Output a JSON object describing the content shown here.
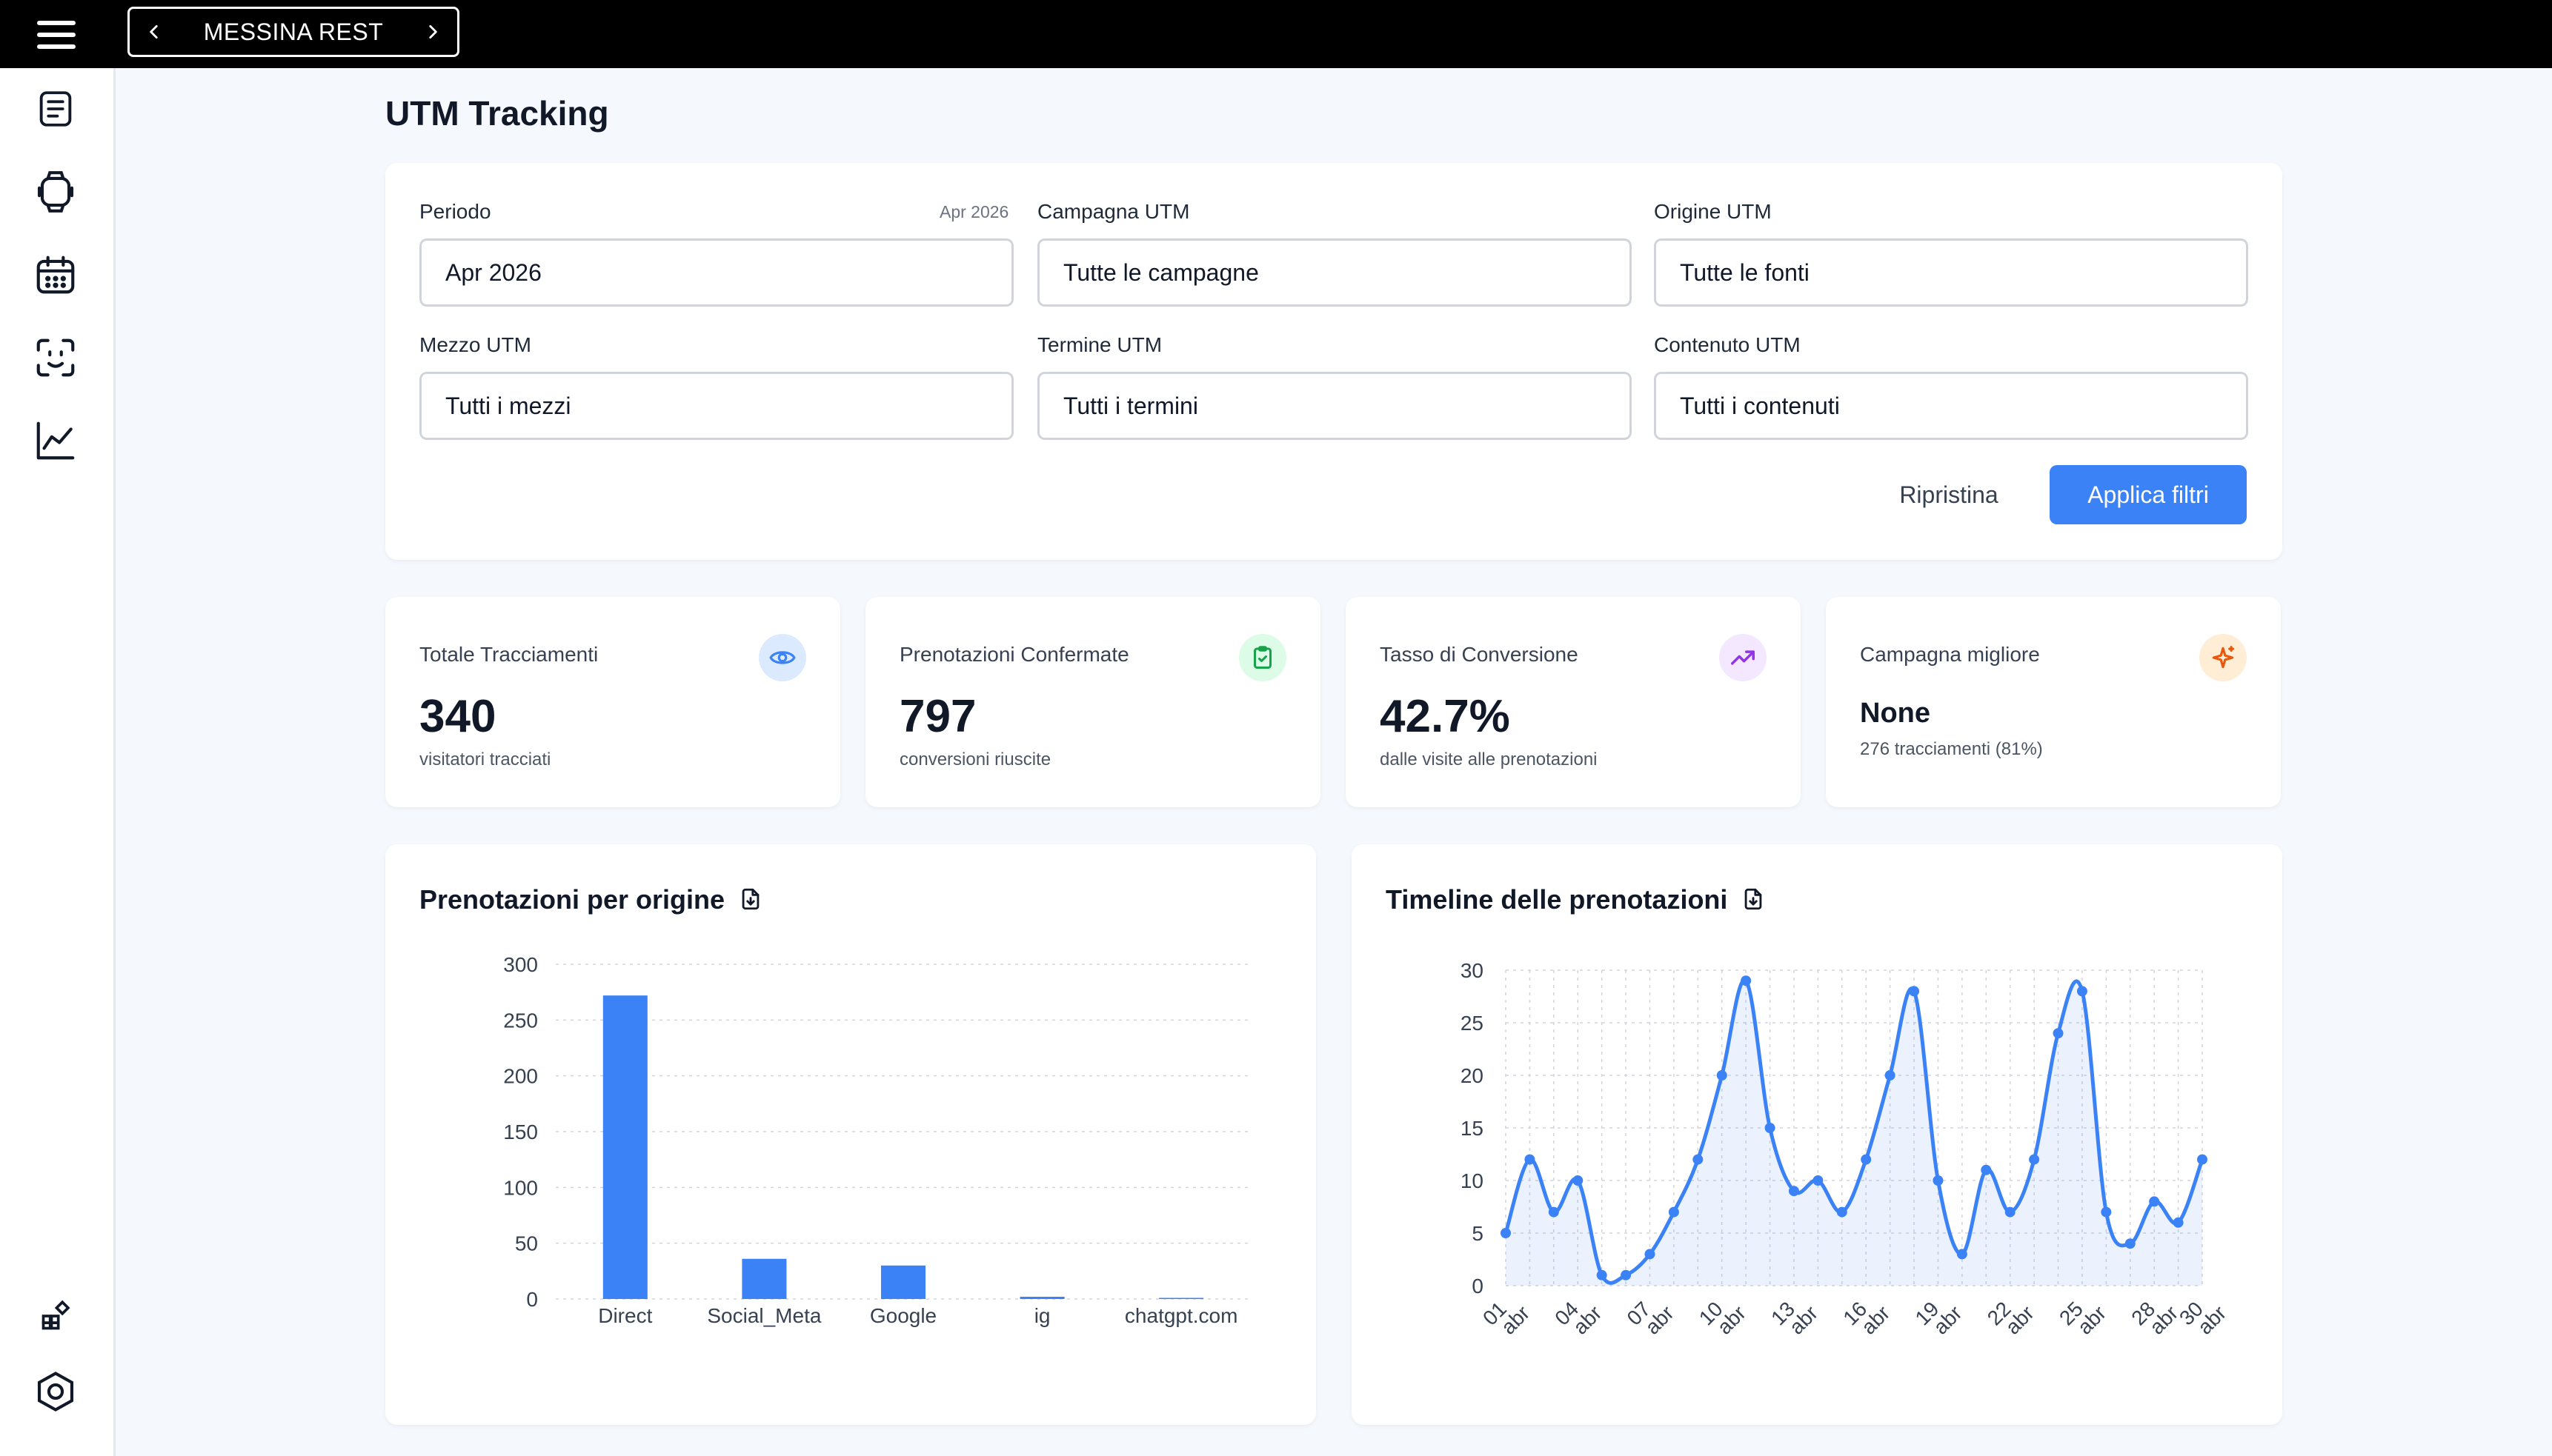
{
  "topbar": {
    "venue_name": "MESSINA REST"
  },
  "sidebar": {
    "items": [
      {
        "icon": "document-list-icon"
      },
      {
        "icon": "watch-icon"
      },
      {
        "icon": "calendar-icon"
      },
      {
        "icon": "face-scan-icon"
      },
      {
        "icon": "line-chart-icon"
      }
    ],
    "bottom_items": [
      {
        "icon": "widgets-icon"
      },
      {
        "icon": "settings-hexagon-icon"
      }
    ]
  },
  "page": {
    "title": "UTM Tracking"
  },
  "filters": {
    "period": {
      "label": "Periodo",
      "hint": "Apr 2026",
      "value": "Apr 2026"
    },
    "campaign": {
      "label": "Campagna UTM",
      "value": "Tutte le campagne"
    },
    "source": {
      "label": "Origine UTM",
      "value": "Tutte le fonti"
    },
    "medium": {
      "label": "Mezzo UTM",
      "value": "Tutti i mezzi"
    },
    "term": {
      "label": "Termine UTM",
      "value": "Tutti i termini"
    },
    "content": {
      "label": "Contenuto UTM",
      "value": "Tutti i contenuti"
    },
    "reset_label": "Ripristina",
    "apply_label": "Applica filtri"
  },
  "stats": [
    {
      "label": "Totale Tracciamenti",
      "value": "340",
      "sub": "visitatori tracciati",
      "icon": "eye-icon",
      "color": "#3b82f6",
      "bg": "#dbeafe"
    },
    {
      "label": "Prenotazioni Confermate",
      "value": "797",
      "sub": "conversioni riuscite",
      "icon": "clipboard-check-icon",
      "color": "#16a34a",
      "bg": "#dcfce7"
    },
    {
      "label": "Tasso di Conversione",
      "value": "42.7%",
      "sub": "dalle visite alle prenotazioni",
      "icon": "trending-up-icon",
      "color": "#9333ea",
      "bg": "#f3e8ff"
    },
    {
      "label": "Campagna migliore",
      "value": "None",
      "sub": "276 tracciamenti (81%)",
      "icon": "sparkle-icon",
      "color": "#ea580c",
      "bg": "#ffedd5"
    }
  ],
  "charts": {
    "origin_title": "Prenotazioni per origine",
    "timeline_title": "Timeline delle prenotazioni"
  },
  "chart_data": [
    {
      "type": "bar",
      "title": "Prenotazioni per origine",
      "categories": [
        "Direct",
        "Social_Meta",
        "Google",
        "ig",
        "chatgpt.com"
      ],
      "values": [
        272,
        36,
        30,
        2,
        1
      ],
      "ylim": [
        0,
        300
      ],
      "yticks": [
        0,
        50,
        100,
        150,
        200,
        250,
        300
      ],
      "grid": true,
      "color": "#3b82f6"
    },
    {
      "type": "area",
      "title": "Timeline delle prenotazioni",
      "x": [
        "01 abr",
        "02 abr",
        "03 abr",
        "04 abr",
        "05 abr",
        "06 abr",
        "07 abr",
        "08 abr",
        "09 abr",
        "10 abr",
        "11 abr",
        "12 abr",
        "13 abr",
        "14 abr",
        "15 abr",
        "16 abr",
        "17 abr",
        "18 abr",
        "19 abr",
        "20 abr",
        "21 abr",
        "22 abr",
        "23 abr",
        "24 abr",
        "25 abr",
        "26 abr",
        "27 abr",
        "28 abr",
        "29 abr",
        "30 abr"
      ],
      "xtick_labels": [
        "01 abr",
        "04 abr",
        "07 abr",
        "10 abr",
        "13 abr",
        "16 abr",
        "19 abr",
        "22 abr",
        "25 abr",
        "28 abr",
        "30 abr"
      ],
      "values": [
        5,
        12,
        7,
        10,
        1,
        1,
        3,
        7,
        12,
        20,
        29,
        15,
        9,
        10,
        7,
        12,
        20,
        28,
        10,
        3,
        11,
        7,
        12,
        24,
        28,
        7,
        4,
        8,
        6,
        12
      ],
      "ylim": [
        0,
        30
      ],
      "yticks": [
        0,
        5,
        10,
        15,
        20,
        25,
        30
      ],
      "grid": true,
      "color": "#3b82f6"
    }
  ]
}
